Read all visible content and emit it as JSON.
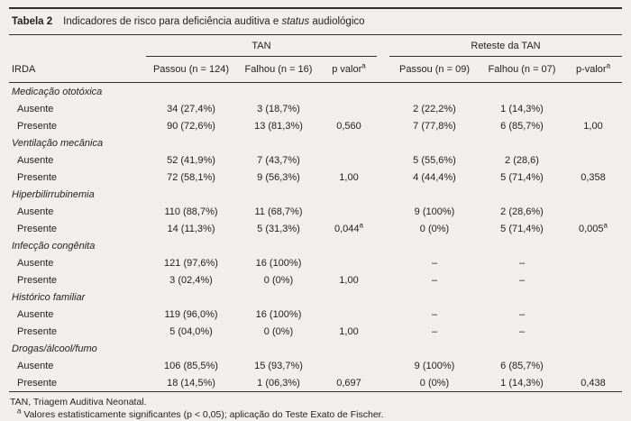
{
  "colors": {
    "background": "#f0efec",
    "text": "#1f1f1f",
    "rule": "#2e2e2e"
  },
  "caption": {
    "label": "Tabela 2",
    "text_before": "Indicadores de risco para deficiência auditiva e ",
    "italic_word": "status",
    "text_after": " audiológico"
  },
  "table": {
    "groups": [
      {
        "label": "TAN"
      },
      {
        "label": "Reteste da TAN"
      }
    ],
    "row_header": "IRDA",
    "columns": [
      "Passou (n = 124)",
      "Falhou (n = 16)",
      "p valor^a",
      "Passou (n = 09)",
      "Falhou (n = 07)",
      "p-valor^a"
    ],
    "rows": [
      {
        "type": "section",
        "label": "Medicação ototóxica"
      },
      {
        "type": "data",
        "label": "Ausente",
        "cells": [
          "34 (27,4%)",
          "3 (18,7%)",
          "",
          "2 (22,2%)",
          "1 (14,3%)",
          ""
        ]
      },
      {
        "type": "data",
        "label": "Presente",
        "cells": [
          "90 (72,6%)",
          "13 (81,3%)",
          "0,560",
          "7 (77,8%)",
          "6 (85,7%)",
          "1,00"
        ]
      },
      {
        "type": "section",
        "label": "Ventilação mecânica"
      },
      {
        "type": "data",
        "label": "Ausente",
        "cells": [
          "52 (41,9%)",
          "7 (43,7%)",
          "",
          "5 (55,6%)",
          "2 (28,6)",
          ""
        ]
      },
      {
        "type": "data",
        "label": "Presente",
        "cells": [
          "72 (58,1%)",
          "9 (56,3%)",
          "1,00",
          "4 (44,4%)",
          "5 (71,4%)",
          "0,358"
        ]
      },
      {
        "type": "section",
        "label": "Hiperbilirrubinemia"
      },
      {
        "type": "data",
        "label": "Ausente",
        "cells": [
          "110 (88,7%)",
          "11 (68,7%)",
          "",
          "9 (100%)",
          "2 (28,6%)",
          ""
        ]
      },
      {
        "type": "data",
        "label": "Presente",
        "cells": [
          "14 (11,3%)",
          "5 (31,3%)",
          "0,044^a",
          "0 (0%)",
          "5 (71,4%)",
          "0,005^a"
        ]
      },
      {
        "type": "section",
        "label": "Infecção congênita"
      },
      {
        "type": "data",
        "label": "Ausente",
        "cells": [
          "121 (97,6%)",
          "16 (100%)",
          "",
          "–",
          "–",
          ""
        ]
      },
      {
        "type": "data",
        "label": "Presente",
        "cells": [
          "3 (02,4%)",
          "0 (0%)",
          "1,00",
          "–",
          "–",
          ""
        ]
      },
      {
        "type": "section",
        "label": "Histórico familiar"
      },
      {
        "type": "data",
        "label": "Ausente",
        "cells": [
          "119 (96,0%)",
          "16 (100%)",
          "",
          "–",
          "–",
          ""
        ]
      },
      {
        "type": "data",
        "label": "Presente",
        "cells": [
          "5 (04,0%)",
          "0 (0%)",
          "1,00",
          "–",
          "–",
          ""
        ]
      },
      {
        "type": "section",
        "label": "Drogas/álcool/fumo"
      },
      {
        "type": "data",
        "label": "Ausente",
        "cells": [
          "106 (85,5%)",
          "15 (93,7%)",
          "",
          "9 (100%)",
          "6 (85,7%)",
          ""
        ]
      },
      {
        "type": "data",
        "label": "Presente",
        "cells": [
          "18 (14,5%)",
          "1 (06,3%)",
          "0,697",
          "0 (0%)",
          "1 (14,3%)",
          "0,438"
        ]
      }
    ]
  },
  "footer": {
    "line1": "TAN, Triagem Auditiva Neonatal.",
    "line2": "^a Valores estatisticamente significantes (p < 0,05); aplicação do Teste Exato de Fischer."
  }
}
